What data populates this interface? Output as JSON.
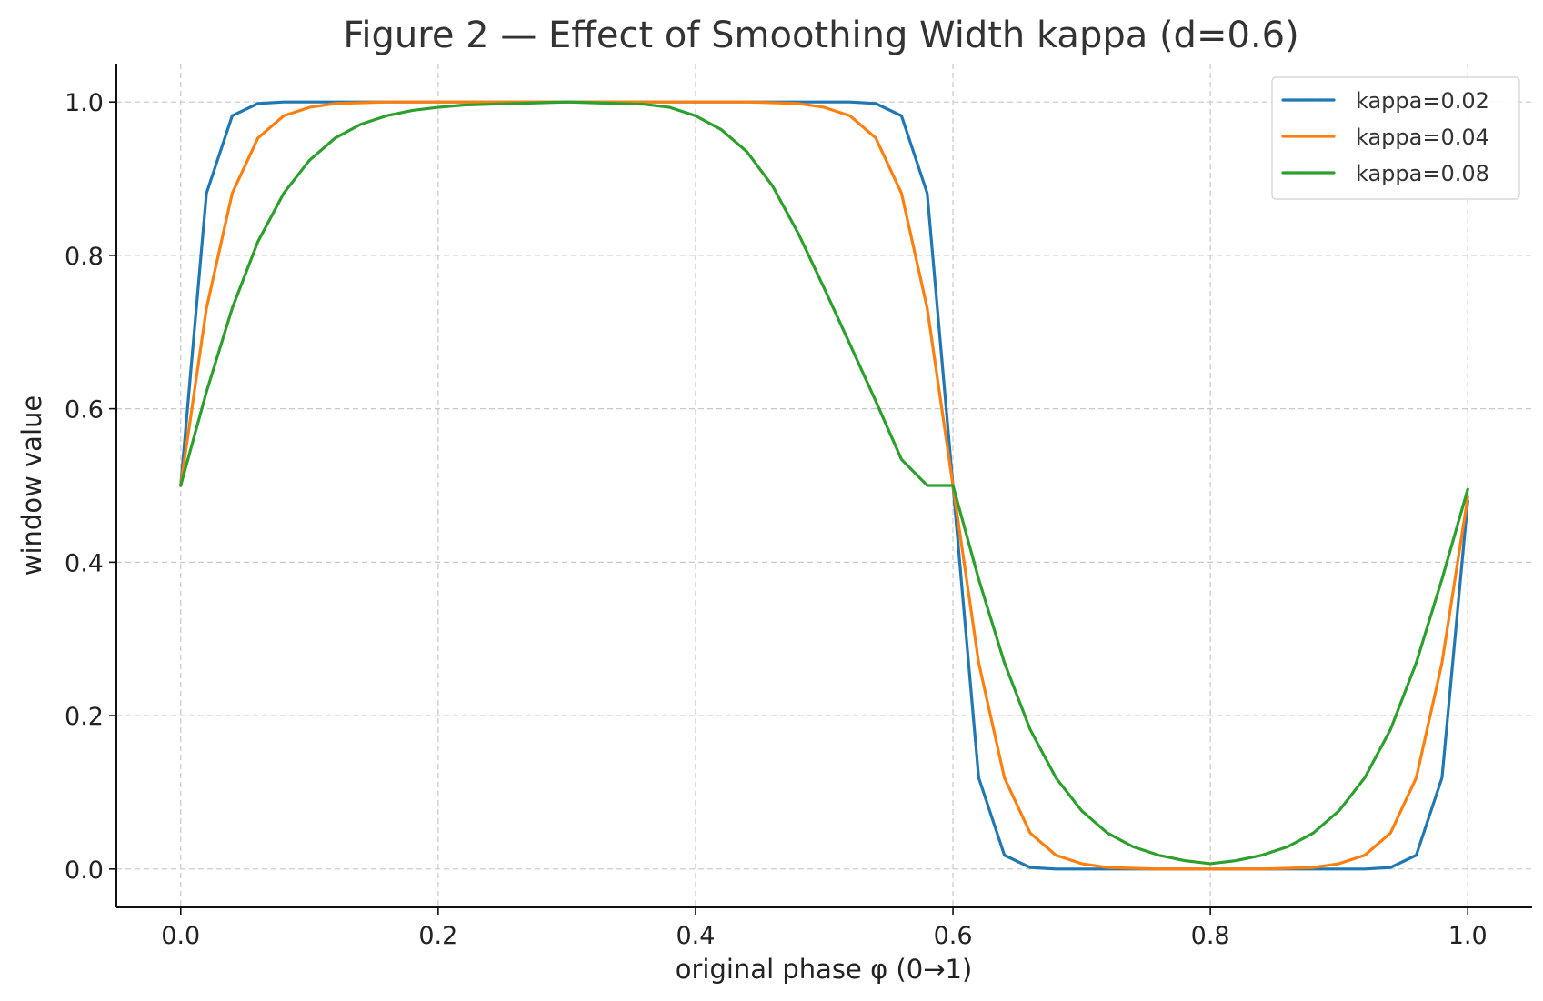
{
  "chart_data": {
    "type": "line",
    "title": "Figure 2 — Effect of Smoothing Width kappa (d=0.6)",
    "xlabel": "original phase φ (0→1)",
    "ylabel": "window value",
    "xlim": [
      -0.05,
      1.05
    ],
    "ylim": [
      -0.05,
      1.05
    ],
    "xticks": [
      {
        "value": 0.0,
        "label": "0.0"
      },
      {
        "value": 0.2,
        "label": "0.2"
      },
      {
        "value": 0.4,
        "label": "0.4"
      },
      {
        "value": 0.6,
        "label": "0.6"
      },
      {
        "value": 0.8,
        "label": "0.8"
      },
      {
        "value": 1.0,
        "label": "1.0"
      }
    ],
    "yticks": [
      {
        "value": 0.0,
        "label": "0.0"
      },
      {
        "value": 0.2,
        "label": "0.2"
      },
      {
        "value": 0.4,
        "label": "0.4"
      },
      {
        "value": 0.6,
        "label": "0.6"
      },
      {
        "value": 0.8,
        "label": "0.8"
      },
      {
        "value": 1.0,
        "label": "1.0"
      }
    ],
    "grid": true,
    "legend_position": "top-right",
    "x": [
      0.0,
      0.02,
      0.04,
      0.06,
      0.08,
      0.1,
      0.12,
      0.14,
      0.16,
      0.18,
      0.2,
      0.22,
      0.24,
      0.26,
      0.28,
      0.3,
      0.32,
      0.34,
      0.36,
      0.38,
      0.4,
      0.42,
      0.44,
      0.46,
      0.48,
      0.5,
      0.52,
      0.54,
      0.56,
      0.58,
      0.6,
      0.62,
      0.64,
      0.66,
      0.68,
      0.7,
      0.72,
      0.74,
      0.76,
      0.78,
      0.8,
      0.82,
      0.84,
      0.86,
      0.88,
      0.9,
      0.92,
      0.94,
      0.96,
      0.98,
      1.0
    ],
    "series": [
      {
        "name": "kappa=0.02",
        "color": "#1f77b4",
        "values": [
          0.5,
          0.881,
          0.982,
          0.998,
          1.0,
          1.0,
          1.0,
          1.0,
          1.0,
          1.0,
          1.0,
          1.0,
          1.0,
          1.0,
          1.0,
          1.0,
          1.0,
          1.0,
          1.0,
          1.0,
          1.0,
          1.0,
          1.0,
          1.0,
          1.0,
          1.0,
          1.0,
          0.998,
          0.982,
          0.881,
          0.5,
          0.119,
          0.018,
          0.002,
          0.0,
          0.0,
          0.0,
          0.0,
          0.0,
          0.0,
          0.0,
          0.0,
          0.0,
          0.0,
          0.0,
          0.0,
          0.0,
          0.002,
          0.018,
          0.119,
          0.48
        ]
      },
      {
        "name": "kappa=0.04",
        "color": "#ff7f0e",
        "values": [
          0.5,
          0.731,
          0.881,
          0.953,
          0.982,
          0.993,
          0.998,
          0.999,
          1.0,
          1.0,
          1.0,
          1.0,
          1.0,
          1.0,
          1.0,
          1.0,
          1.0,
          1.0,
          1.0,
          1.0,
          1.0,
          1.0,
          1.0,
          0.999,
          0.998,
          0.993,
          0.982,
          0.953,
          0.881,
          0.731,
          0.5,
          0.269,
          0.119,
          0.047,
          0.018,
          0.007,
          0.002,
          0.001,
          0.0,
          0.0,
          0.0,
          0.0,
          0.0,
          0.001,
          0.002,
          0.007,
          0.018,
          0.047,
          0.119,
          0.269,
          0.485
        ]
      },
      {
        "name": "kappa=0.08",
        "color": "#2ca02c",
        "values": [
          0.5,
          0.622,
          0.731,
          0.818,
          0.881,
          0.924,
          0.953,
          0.971,
          0.982,
          0.989,
          0.993,
          0.996,
          0.997,
          0.998,
          0.999,
          1.0,
          0.999,
          0.998,
          0.997,
          0.993,
          0.982,
          0.964,
          0.935,
          0.89,
          0.828,
          0.757,
          0.684,
          0.61,
          0.534,
          0.5,
          0.5,
          0.378,
          0.269,
          0.182,
          0.119,
          0.076,
          0.047,
          0.029,
          0.018,
          0.011,
          0.007,
          0.011,
          0.018,
          0.029,
          0.047,
          0.076,
          0.119,
          0.182,
          0.269,
          0.378,
          0.495
        ]
      }
    ]
  }
}
